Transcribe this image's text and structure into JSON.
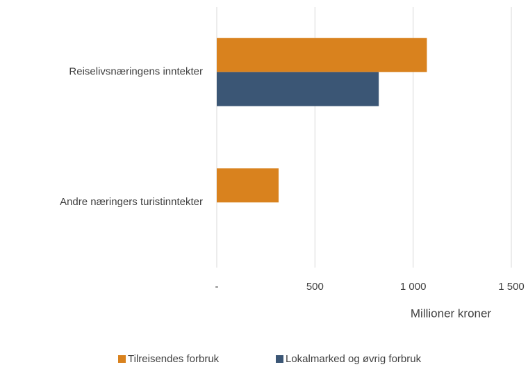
{
  "chart_data": {
    "type": "hbar",
    "categories": [
      "Reiselivsnæringens inntekter",
      "Andre næringers turistinntekter"
    ],
    "series": [
      {
        "name": "Tilreisendes forbruk",
        "color": "#d9821e",
        "values": [
          1070,
          315
        ]
      },
      {
        "name": "Lokalmarked og øvrig forbruk",
        "color": "#3b5675",
        "values": [
          825,
          null
        ]
      }
    ],
    "xlabel": "Millioner kroner",
    "xlim": [
      0,
      1500
    ],
    "xticks": [
      {
        "value": 0,
        "label": "-"
      },
      500,
      {
        "value": 1000,
        "label": "1 000"
      },
      {
        "value": 1500,
        "label": "1 500"
      }
    ],
    "grid": true,
    "legend": "bottom"
  }
}
